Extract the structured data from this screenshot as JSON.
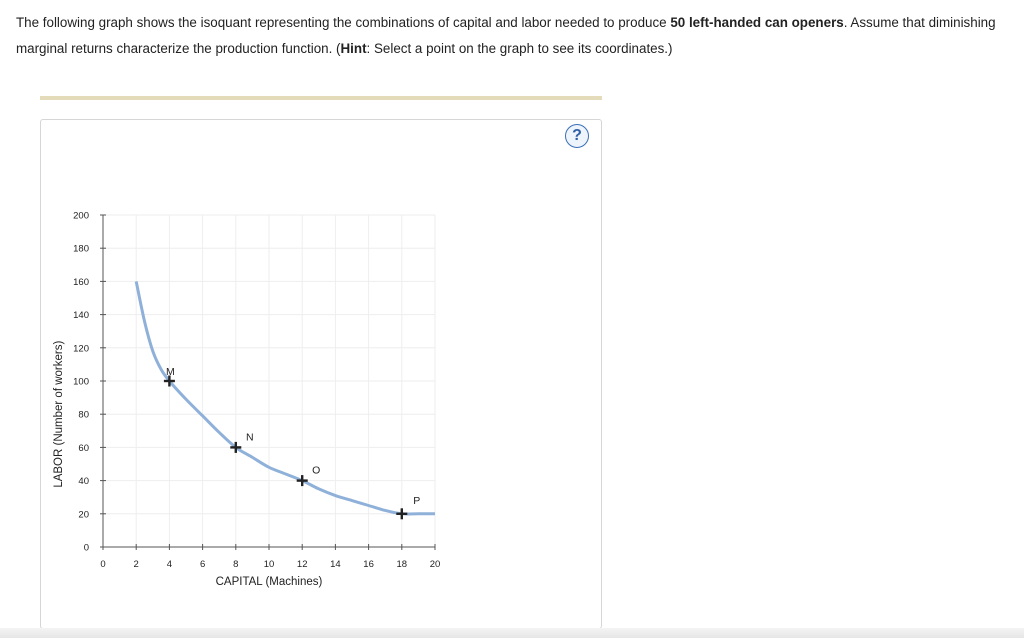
{
  "question": {
    "part1": "The following graph shows the isoquant representing the combinations of capital and labor needed to produce ",
    "bold1": "50 left-handed can openers",
    "part2": ". Assume that diminishing marginal returns characterize the production function. (",
    "bold2": "Hint",
    "part3": ": Select a point on the graph to see its coordinates.)"
  },
  "help": {
    "label": "?"
  },
  "colors": {
    "curve": "#8fb1d9",
    "marker": "#222222",
    "grid": "#eeeeee",
    "divider": "#e3dbb9",
    "help": "#3b6fb6"
  },
  "chart_data": {
    "type": "line",
    "xlabel": "CAPITAL (Machines)",
    "ylabel": "LABOR (Number of workers)",
    "xlim": [
      0,
      20
    ],
    "ylim": [
      0,
      200
    ],
    "xticks": [
      0,
      2,
      4,
      6,
      8,
      10,
      12,
      14,
      16,
      18,
      20
    ],
    "yticks": [
      0,
      20,
      40,
      60,
      80,
      100,
      120,
      140,
      160,
      180,
      200
    ],
    "grid": true,
    "series": [
      {
        "x": [
          2,
          2.5,
          3,
          3.5,
          4,
          5,
          6,
          7,
          8,
          9,
          10,
          11,
          12,
          13,
          14,
          15,
          16,
          17,
          18,
          19,
          20
        ],
        "y": [
          160,
          136,
          118,
          107,
          100,
          89,
          79,
          69,
          60,
          54,
          48,
          44,
          40,
          35,
          31,
          28,
          25,
          22,
          20,
          20,
          20
        ]
      }
    ],
    "points": [
      {
        "label": "M",
        "x": 4,
        "y": 100
      },
      {
        "label": "N",
        "x": 8,
        "y": 60
      },
      {
        "label": "O",
        "x": 12,
        "y": 40
      },
      {
        "label": "P",
        "x": 18,
        "y": 20
      }
    ]
  }
}
